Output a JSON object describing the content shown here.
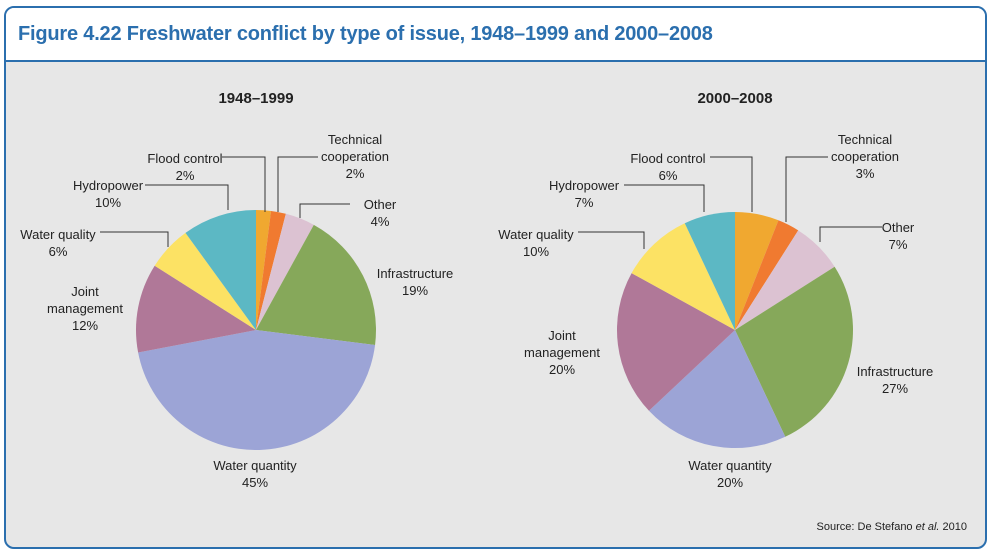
{
  "title": "Figure 4.22 Freshwater conflict by type of issue, 1948–1999 and 2000–2008",
  "source": {
    "prefix": "Source: De Stefano ",
    "emphasis": "et al.",
    "suffix": " 2010"
  },
  "chart_data": [
    {
      "type": "pie",
      "title": "1948–1999",
      "categories": [
        "Flood control",
        "Technical cooperation",
        "Other",
        "Infrastructure",
        "Water quantity",
        "Joint management",
        "Water quality",
        "Hydropower"
      ],
      "values": [
        2,
        2,
        4,
        19,
        45,
        12,
        6,
        10
      ],
      "value_labels": [
        "2%",
        "2%",
        "4%",
        "19%",
        "45%",
        "12%",
        "6%",
        "10%"
      ],
      "colors": [
        "#f0a830",
        "#f07a30",
        "#dcc2d2",
        "#86a85a",
        "#9ca4d6",
        "#b07898",
        "#fce264",
        "#5cb8c4"
      ]
    },
    {
      "type": "pie",
      "title": "2000–2008",
      "categories": [
        "Flood control",
        "Technical cooperation",
        "Other",
        "Infrastructure",
        "Water quantity",
        "Joint management",
        "Water quality",
        "Hydropower"
      ],
      "values": [
        6,
        3,
        7,
        27,
        20,
        20,
        10,
        7
      ],
      "value_labels": [
        "6%",
        "3%",
        "7%",
        "27%",
        "20%",
        "20%",
        "10%",
        "7%"
      ],
      "colors": [
        "#f0a830",
        "#f07a30",
        "#dcc2d2",
        "#86a85a",
        "#9ca4d6",
        "#b07898",
        "#fce264",
        "#5cb8c4"
      ]
    }
  ]
}
